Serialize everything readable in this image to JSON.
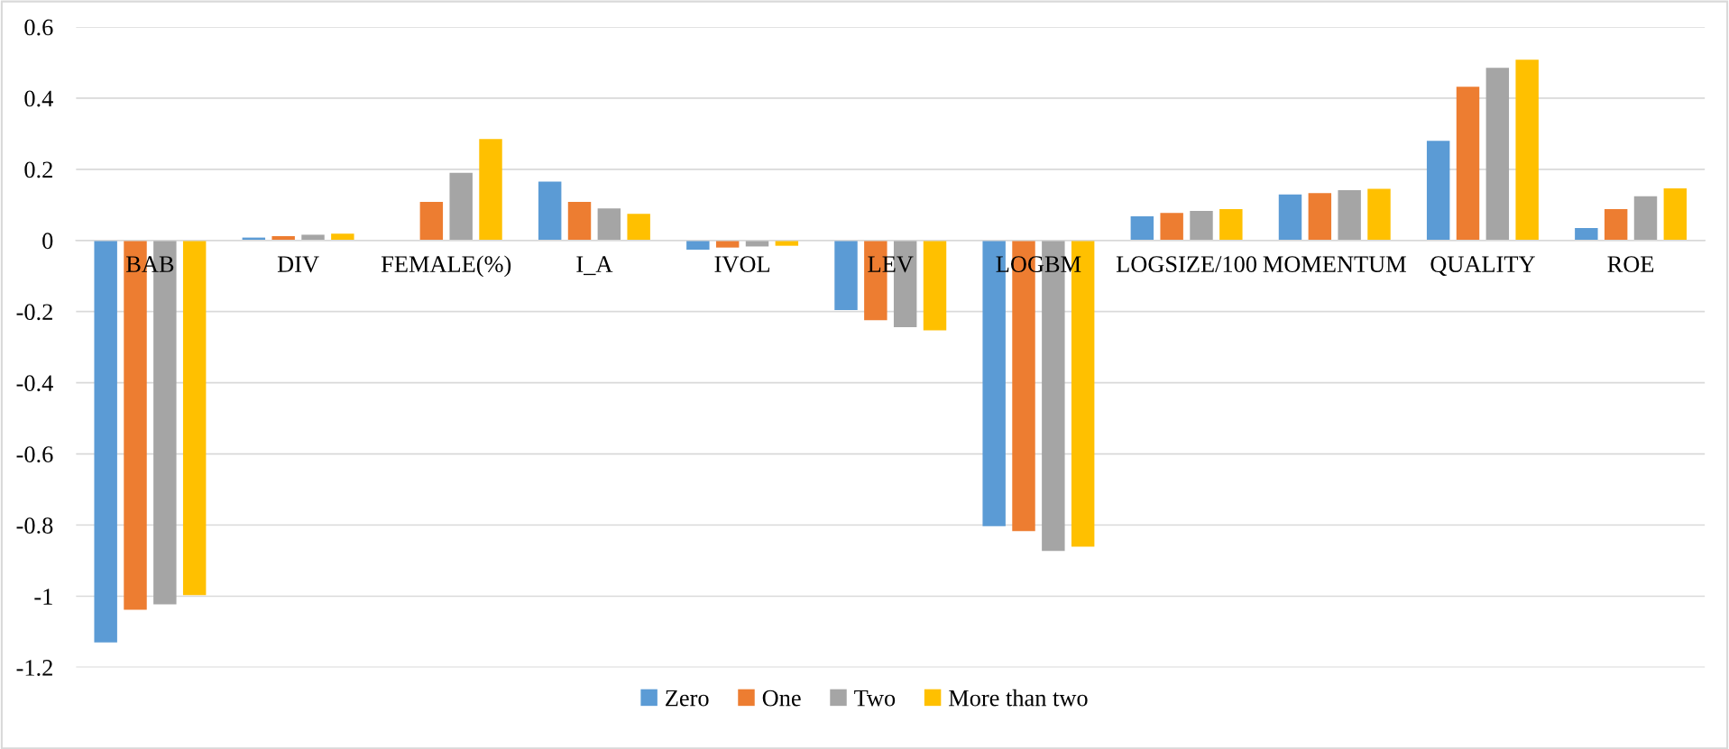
{
  "chart_data": {
    "type": "bar",
    "categories": [
      "BAB",
      "DIV",
      "FEMALE(%)",
      "I_A",
      "IVOL",
      "LEV",
      "LOGBM",
      "LOGSIZE/100",
      "MOMENTUM",
      "QUALITY",
      "ROE"
    ],
    "series": [
      {
        "name": "Zero",
        "color": "#5b9bd5",
        "values": [
          -1.13,
          0.008,
          0,
          0.165,
          -0.026,
          -0.196,
          -0.803,
          0.068,
          0.129,
          0.28,
          0.035
        ]
      },
      {
        "name": "One",
        "color": "#ed7d31",
        "values": [
          -1.038,
          0.012,
          0.108,
          0.108,
          -0.02,
          -0.224,
          -0.817,
          0.077,
          0.133,
          0.432,
          0.088
        ]
      },
      {
        "name": "Two",
        "color": "#a5a5a5",
        "values": [
          -1.023,
          0.016,
          0.19,
          0.09,
          -0.017,
          -0.244,
          -0.873,
          0.083,
          0.141,
          0.485,
          0.124
        ]
      },
      {
        "name": "More than two",
        "color": "#ffc000",
        "values": [
          -0.997,
          0.019,
          0.285,
          0.075,
          -0.015,
          -0.253,
          -0.861,
          0.088,
          0.145,
          0.508,
          0.146
        ]
      }
    ],
    "ylim": [
      -1.2,
      0.6
    ],
    "yticks": [
      -1.2,
      -1,
      -0.8,
      -0.6,
      -0.4,
      -0.2,
      0,
      0.2,
      0.4,
      0.6
    ],
    "grid": "y",
    "legend": "bottom"
  }
}
